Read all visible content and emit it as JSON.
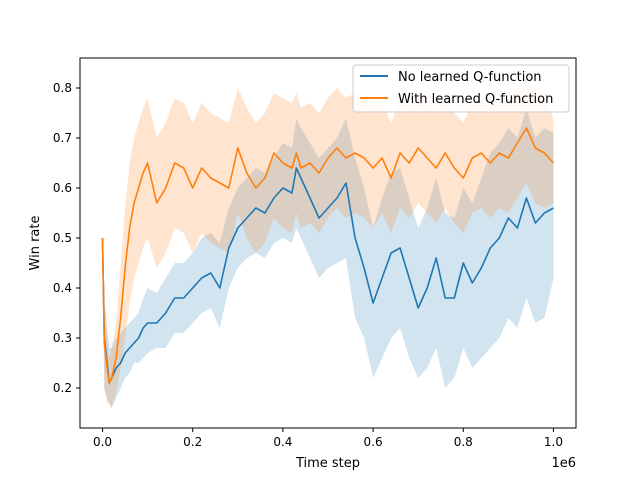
{
  "chart_data": {
    "type": "line",
    "title": "",
    "xlabel": "Time step",
    "ylabel": "Win rate",
    "x_offset_label": "1e6",
    "xlim": [
      -0.05,
      1.05
    ],
    "ylim": [
      0.12,
      0.86
    ],
    "x_ticks": [
      0.0,
      0.2,
      0.4,
      0.6,
      0.8,
      1.0
    ],
    "x_tick_labels": [
      "0.0",
      "0.2",
      "0.4",
      "0.6",
      "0.8",
      "1.0"
    ],
    "y_ticks": [
      0.2,
      0.3,
      0.4,
      0.5,
      0.6,
      0.7,
      0.8
    ],
    "y_tick_labels": [
      "0.2",
      "0.3",
      "0.4",
      "0.5",
      "0.6",
      "0.7",
      "0.8"
    ],
    "grid": false,
    "legend_position": "top-right",
    "series": [
      {
        "name": "No learned Q-function",
        "color": "#1f77b4",
        "band_color": "#1f77b4",
        "x": [
          0.0,
          0.004,
          0.01,
          0.015,
          0.02,
          0.03,
          0.04,
          0.05,
          0.06,
          0.07,
          0.08,
          0.09,
          0.1,
          0.12,
          0.14,
          0.16,
          0.18,
          0.2,
          0.22,
          0.24,
          0.26,
          0.28,
          0.3,
          0.32,
          0.34,
          0.36,
          0.38,
          0.4,
          0.42,
          0.43,
          0.44,
          0.46,
          0.48,
          0.5,
          0.52,
          0.54,
          0.56,
          0.58,
          0.6,
          0.62,
          0.64,
          0.66,
          0.68,
          0.7,
          0.72,
          0.74,
          0.76,
          0.78,
          0.8,
          0.82,
          0.84,
          0.86,
          0.88,
          0.9,
          0.92,
          0.94,
          0.96,
          0.98,
          1.0
        ],
        "y": [
          0.5,
          0.3,
          0.25,
          0.21,
          0.22,
          0.24,
          0.25,
          0.27,
          0.28,
          0.29,
          0.3,
          0.32,
          0.33,
          0.33,
          0.35,
          0.38,
          0.38,
          0.4,
          0.42,
          0.43,
          0.4,
          0.48,
          0.52,
          0.54,
          0.56,
          0.55,
          0.58,
          0.6,
          0.59,
          0.64,
          0.62,
          0.58,
          0.54,
          0.56,
          0.58,
          0.61,
          0.5,
          0.44,
          0.37,
          0.42,
          0.47,
          0.48,
          0.42,
          0.36,
          0.4,
          0.46,
          0.38,
          0.38,
          0.45,
          0.41,
          0.44,
          0.48,
          0.5,
          0.54,
          0.52,
          0.58,
          0.53,
          0.55,
          0.56
        ],
        "lower": [
          0.5,
          0.2,
          0.18,
          0.17,
          0.16,
          0.18,
          0.2,
          0.22,
          0.23,
          0.25,
          0.25,
          0.26,
          0.27,
          0.28,
          0.28,
          0.31,
          0.31,
          0.33,
          0.35,
          0.36,
          0.32,
          0.4,
          0.44,
          0.46,
          0.47,
          0.46,
          0.49,
          0.5,
          0.49,
          0.52,
          0.5,
          0.46,
          0.42,
          0.44,
          0.45,
          0.46,
          0.34,
          0.3,
          0.22,
          0.26,
          0.3,
          0.32,
          0.26,
          0.22,
          0.24,
          0.28,
          0.2,
          0.22,
          0.28,
          0.24,
          0.26,
          0.28,
          0.3,
          0.34,
          0.32,
          0.38,
          0.33,
          0.34,
          0.42
        ],
        "upper": [
          0.5,
          0.38,
          0.32,
          0.28,
          0.28,
          0.3,
          0.31,
          0.32,
          0.33,
          0.34,
          0.35,
          0.38,
          0.4,
          0.39,
          0.42,
          0.45,
          0.45,
          0.47,
          0.5,
          0.51,
          0.49,
          0.56,
          0.6,
          0.62,
          0.64,
          0.63,
          0.66,
          0.69,
          0.68,
          0.74,
          0.72,
          0.69,
          0.66,
          0.68,
          0.7,
          0.74,
          0.66,
          0.6,
          0.52,
          0.58,
          0.63,
          0.64,
          0.58,
          0.52,
          0.56,
          0.62,
          0.55,
          0.54,
          0.6,
          0.57,
          0.62,
          0.67,
          0.69,
          0.72,
          0.7,
          0.76,
          0.7,
          0.72,
          0.71
        ]
      },
      {
        "name": "With learned Q-function",
        "color": "#ff7f0e",
        "band_color": "#ff7f0e",
        "x": [
          0.0,
          0.004,
          0.01,
          0.015,
          0.02,
          0.03,
          0.04,
          0.05,
          0.06,
          0.07,
          0.08,
          0.09,
          0.1,
          0.12,
          0.14,
          0.16,
          0.18,
          0.2,
          0.22,
          0.24,
          0.26,
          0.28,
          0.3,
          0.32,
          0.34,
          0.36,
          0.38,
          0.4,
          0.42,
          0.43,
          0.44,
          0.46,
          0.48,
          0.5,
          0.52,
          0.54,
          0.56,
          0.58,
          0.6,
          0.62,
          0.64,
          0.66,
          0.68,
          0.7,
          0.72,
          0.74,
          0.76,
          0.78,
          0.8,
          0.82,
          0.84,
          0.86,
          0.88,
          0.9,
          0.92,
          0.94,
          0.96,
          0.98,
          1.0
        ],
        "y": [
          0.5,
          0.29,
          0.24,
          0.21,
          0.22,
          0.26,
          0.34,
          0.44,
          0.52,
          0.57,
          0.6,
          0.63,
          0.65,
          0.57,
          0.6,
          0.65,
          0.64,
          0.6,
          0.64,
          0.62,
          0.61,
          0.6,
          0.68,
          0.63,
          0.6,
          0.62,
          0.67,
          0.65,
          0.64,
          0.67,
          0.64,
          0.65,
          0.63,
          0.66,
          0.68,
          0.66,
          0.67,
          0.66,
          0.64,
          0.66,
          0.62,
          0.67,
          0.65,
          0.68,
          0.66,
          0.64,
          0.67,
          0.64,
          0.62,
          0.66,
          0.67,
          0.65,
          0.67,
          0.66,
          0.69,
          0.72,
          0.68,
          0.67,
          0.65
        ],
        "lower": [
          0.5,
          0.2,
          0.17,
          0.17,
          0.16,
          0.19,
          0.24,
          0.3,
          0.37,
          0.42,
          0.45,
          0.48,
          0.5,
          0.44,
          0.47,
          0.52,
          0.51,
          0.47,
          0.51,
          0.49,
          0.48,
          0.47,
          0.55,
          0.5,
          0.47,
          0.49,
          0.54,
          0.52,
          0.51,
          0.55,
          0.52,
          0.53,
          0.51,
          0.54,
          0.56,
          0.54,
          0.55,
          0.54,
          0.52,
          0.55,
          0.51,
          0.56,
          0.54,
          0.57,
          0.55,
          0.53,
          0.56,
          0.53,
          0.51,
          0.55,
          0.56,
          0.54,
          0.56,
          0.55,
          0.58,
          0.61,
          0.57,
          0.56,
          0.57
        ],
        "upper": [
          0.5,
          0.38,
          0.31,
          0.26,
          0.28,
          0.33,
          0.44,
          0.56,
          0.65,
          0.7,
          0.73,
          0.76,
          0.78,
          0.7,
          0.73,
          0.78,
          0.77,
          0.73,
          0.77,
          0.75,
          0.74,
          0.73,
          0.8,
          0.76,
          0.73,
          0.75,
          0.79,
          0.78,
          0.77,
          0.79,
          0.76,
          0.77,
          0.75,
          0.78,
          0.8,
          0.78,
          0.79,
          0.78,
          0.76,
          0.77,
          0.73,
          0.78,
          0.76,
          0.79,
          0.77,
          0.75,
          0.78,
          0.75,
          0.73,
          0.77,
          0.78,
          0.76,
          0.78,
          0.77,
          0.8,
          0.82,
          0.79,
          0.78,
          0.74
        ]
      }
    ]
  }
}
